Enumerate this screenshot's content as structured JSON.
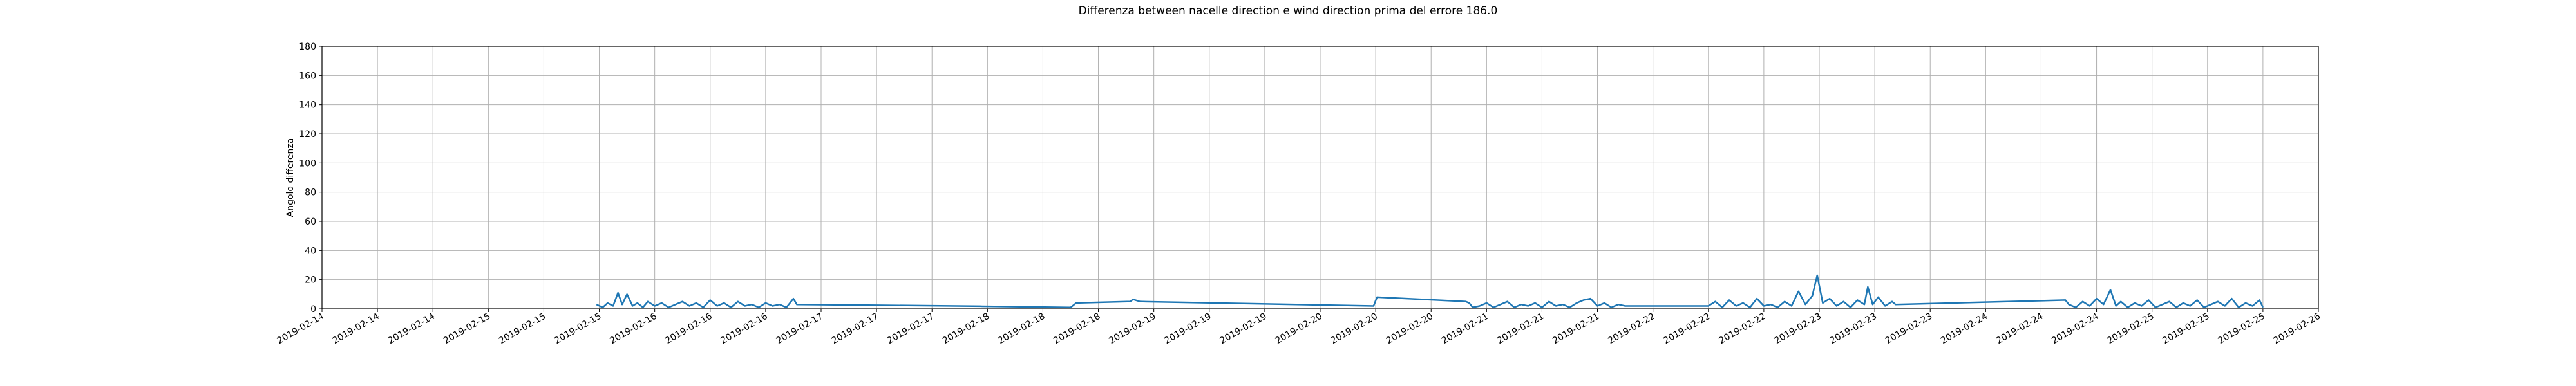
{
  "chart_data": {
    "type": "line",
    "title": "Differenza between nacelle direction e wind direction prima del errore 186.0",
    "y_label": "Angolo differenza",
    "color": "#1f77b4",
    "grid": true,
    "xlim": [
      0,
      288
    ],
    "ylim": [
      0,
      180
    ],
    "yticks": [
      0,
      20,
      40,
      60,
      80,
      100,
      120,
      140,
      160,
      180
    ],
    "xticks": [
      {
        "value": 0,
        "label": "2019-02-14"
      },
      {
        "value": 8,
        "label": "2019-02-14"
      },
      {
        "value": 16,
        "label": "2019-02-14"
      },
      {
        "value": 24,
        "label": "2019-02-15"
      },
      {
        "value": 32,
        "label": "2019-02-15"
      },
      {
        "value": 40,
        "label": "2019-02-15"
      },
      {
        "value": 48,
        "label": "2019-02-16"
      },
      {
        "value": 56,
        "label": "2019-02-16"
      },
      {
        "value": 64,
        "label": "2019-02-16"
      },
      {
        "value": 72,
        "label": "2019-02-17"
      },
      {
        "value": 80,
        "label": "2019-02-17"
      },
      {
        "value": 88,
        "label": "2019-02-17"
      },
      {
        "value": 96,
        "label": "2019-02-18"
      },
      {
        "value": 104,
        "label": "2019-02-18"
      },
      {
        "value": 112,
        "label": "2019-02-18"
      },
      {
        "value": 120,
        "label": "2019-02-19"
      },
      {
        "value": 128,
        "label": "2019-02-19"
      },
      {
        "value": 136,
        "label": "2019-02-19"
      },
      {
        "value": 144,
        "label": "2019-02-20"
      },
      {
        "value": 152,
        "label": "2019-02-20"
      },
      {
        "value": 160,
        "label": "2019-02-20"
      },
      {
        "value": 168,
        "label": "2019-02-21"
      },
      {
        "value": 176,
        "label": "2019-02-21"
      },
      {
        "value": 184,
        "label": "2019-02-21"
      },
      {
        "value": 192,
        "label": "2019-02-22"
      },
      {
        "value": 200,
        "label": "2019-02-22"
      },
      {
        "value": 208,
        "label": "2019-02-22"
      },
      {
        "value": 216,
        "label": "2019-02-23"
      },
      {
        "value": 224,
        "label": "2019-02-23"
      },
      {
        "value": 232,
        "label": "2019-02-23"
      },
      {
        "value": 240,
        "label": "2019-02-24"
      },
      {
        "value": 248,
        "label": "2019-02-24"
      },
      {
        "value": 256,
        "label": "2019-02-24"
      },
      {
        "value": 264,
        "label": "2019-02-25"
      },
      {
        "value": 272,
        "label": "2019-02-25"
      },
      {
        "value": 280,
        "label": "2019-02-25"
      },
      {
        "value": 288,
        "label": "2019-02-26"
      }
    ],
    "x": [
      39.6,
      40.5,
      41.2,
      42,
      42.7,
      43.3,
      44,
      44.8,
      45.5,
      46.3,
      47,
      48,
      49,
      50,
      51,
      52,
      53,
      54,
      55,
      56,
      57,
      58,
      59,
      60,
      61,
      62,
      63,
      64,
      65,
      66,
      67,
      68,
      68.5,
      80,
      95,
      108,
      108.8,
      116.6,
      117,
      118,
      151.7,
      152.2,
      165,
      165.5,
      166,
      167,
      168,
      169,
      170,
      171,
      172,
      173,
      174,
      175,
      176,
      177,
      178,
      179,
      180,
      181,
      182,
      183,
      184,
      185,
      186,
      187,
      188,
      200,
      201,
      202,
      203,
      204,
      205,
      206,
      207,
      208,
      209,
      210,
      211,
      212,
      213,
      214,
      215,
      215.7,
      216.5,
      217.5,
      218.5,
      219.5,
      220.5,
      221.5,
      222.5,
      223,
      223.7,
      224.5,
      225.5,
      226.5,
      227,
      251.5,
      252,
      253,
      254,
      255,
      256,
      257,
      258,
      258.8,
      259.5,
      260.5,
      261.5,
      262.5,
      263.5,
      264.5,
      265.5,
      266.5,
      267.5,
      268.5,
      269.5,
      270.5,
      271.5,
      272.5,
      273.5,
      274.5,
      275.5,
      276.5,
      277.5,
      278.5,
      279.5,
      280
    ],
    "values": [
      3,
      1,
      4,
      2,
      11,
      3,
      10,
      2,
      4,
      1,
      5,
      2,
      4,
      1,
      3,
      5,
      2,
      4,
      1,
      6,
      2,
      4,
      1,
      5,
      2,
      3,
      1,
      4,
      2,
      3,
      1,
      7,
      3,
      2.5,
      1.8,
      1,
      4,
      5,
      6.5,
      5,
      2,
      8,
      5,
      4,
      1,
      2,
      4,
      1,
      3,
      5,
      1,
      3,
      2,
      4,
      1,
      5,
      2,
      3,
      1,
      4,
      6,
      7,
      2,
      4,
      1,
      3,
      2,
      2,
      5,
      1,
      6,
      2,
      4,
      1,
      7,
      2,
      3,
      1,
      5,
      2,
      12,
      3,
      9,
      23,
      4,
      7,
      2,
      5,
      1,
      6,
      3,
      15,
      3,
      8,
      2,
      5,
      3,
      6,
      3,
      1,
      5,
      2,
      7,
      3,
      13,
      2,
      5,
      1,
      4,
      2,
      6,
      1,
      3,
      5,
      1,
      4,
      2,
      6,
      1,
      3,
      5,
      2,
      7,
      1,
      4,
      2,
      6,
      1
    ]
  }
}
